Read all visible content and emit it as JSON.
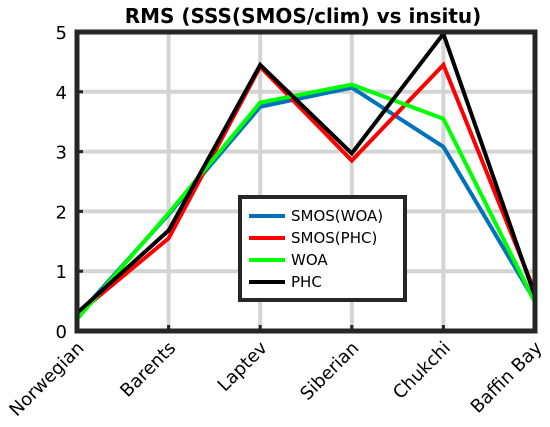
{
  "chart_data": {
    "type": "line",
    "title": "RMS (SSS(SMOS/clim) vs insitu)",
    "xlabel": "",
    "ylabel": "",
    "categories": [
      "Norwegian",
      "Barents",
      "Laptev",
      "Siberian",
      "Chukchi",
      "Baffin Bay"
    ],
    "ylim": [
      0,
      5
    ],
    "yticks": [
      0,
      1,
      2,
      3,
      4,
      5
    ],
    "grid": true,
    "legend_position": "center-bottom",
    "series": [
      {
        "name": "SMOS(WOA)",
        "color": "#0072bd",
        "values": [
          0.25,
          1.95,
          3.75,
          4.07,
          3.08,
          0.5
        ]
      },
      {
        "name": "SMOS(PHC)",
        "color": "#ff0000",
        "values": [
          0.28,
          1.55,
          4.42,
          2.85,
          4.45,
          0.65
        ]
      },
      {
        "name": "WOA",
        "color": "#00ff00",
        "values": [
          0.2,
          1.97,
          3.82,
          4.12,
          3.55,
          0.48
        ]
      },
      {
        "name": "PHC",
        "color": "#000000",
        "values": [
          0.3,
          1.68,
          4.45,
          2.97,
          4.97,
          0.58
        ]
      }
    ]
  }
}
